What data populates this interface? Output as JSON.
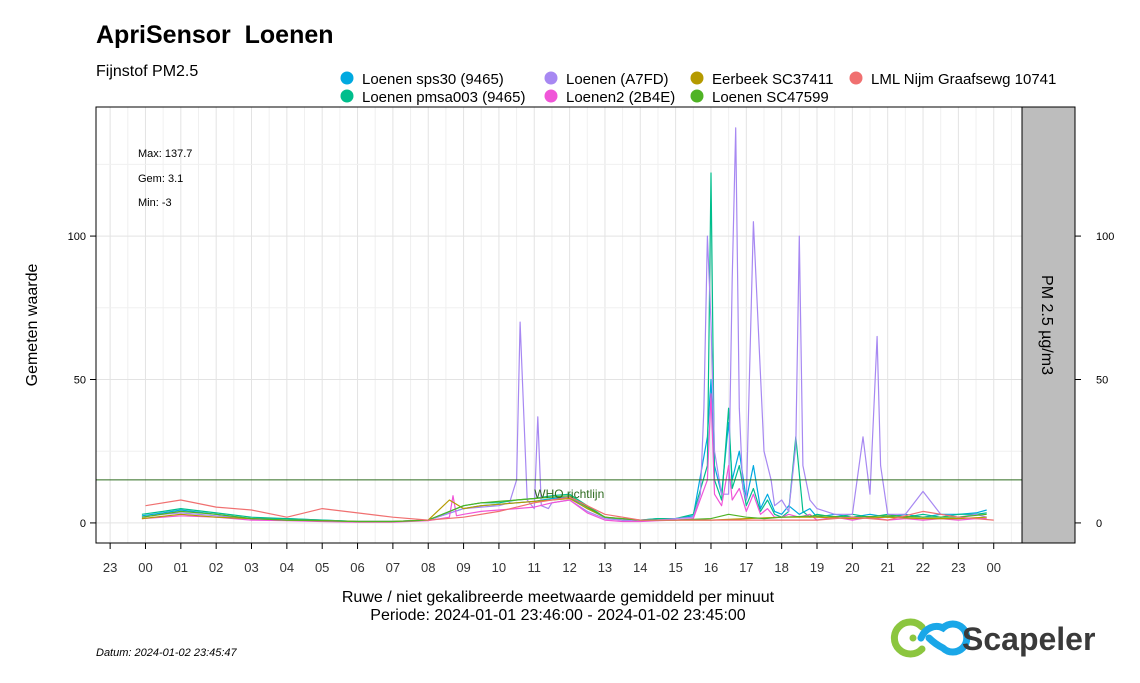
{
  "chart_data": {
    "type": "line",
    "title": "ApriSensor  Loenen",
    "subtitle": "Fijnstof PM2.5",
    "ylabel": "Gemeten waarde",
    "xlabel": "Ruwe / niet gekalibreerde meetwaarde gemiddeld per minuut",
    "period": "Periode: 2024-01-01 23:46:00 - 2024-01-02 23:45:00",
    "strip_label": "PM 2.5 µg/m3",
    "date_label": "Datum: 2024-01-02 23:45:47",
    "stats": {
      "max": "Max: 137.7",
      "gem": "Gem: 3.1",
      "min": "Min: -3"
    },
    "who": {
      "label": "WHO richtlijn",
      "value": 15,
      "color": "#2e6b1f"
    },
    "ylim": [
      -7,
      145
    ],
    "yticks": [
      0,
      50,
      100
    ],
    "xlim": [
      -0.4,
      25.8
    ],
    "xticks": [
      {
        "pos": 0,
        "label": "23"
      },
      {
        "pos": 1,
        "label": "00"
      },
      {
        "pos": 2,
        "label": "01"
      },
      {
        "pos": 3,
        "label": "02"
      },
      {
        "pos": 4,
        "label": "03"
      },
      {
        "pos": 5,
        "label": "04"
      },
      {
        "pos": 6,
        "label": "05"
      },
      {
        "pos": 7,
        "label": "06"
      },
      {
        "pos": 8,
        "label": "07"
      },
      {
        "pos": 9,
        "label": "08"
      },
      {
        "pos": 10,
        "label": "09"
      },
      {
        "pos": 11,
        "label": "10"
      },
      {
        "pos": 12,
        "label": "11"
      },
      {
        "pos": 13,
        "label": "12"
      },
      {
        "pos": 14,
        "label": "13"
      },
      {
        "pos": 15,
        "label": "14"
      },
      {
        "pos": 16,
        "label": "15"
      },
      {
        "pos": 17,
        "label": "16"
      },
      {
        "pos": 18,
        "label": "17"
      },
      {
        "pos": 19,
        "label": "18"
      },
      {
        "pos": 20,
        "label": "19"
      },
      {
        "pos": 21,
        "label": "20"
      },
      {
        "pos": 22,
        "label": "21"
      },
      {
        "pos": 23,
        "label": "22"
      },
      {
        "pos": 24,
        "label": "23"
      },
      {
        "pos": 25,
        "label": "00"
      }
    ],
    "grid": true,
    "legend_position": "top",
    "series": [
      {
        "name": "Loenen sps30 (9465)",
        "color": "#00a9e0",
        "x": [
          0.9,
          1.5,
          2.0,
          3.0,
          4.0,
          5.0,
          6.0,
          7.0,
          8.0,
          9.0,
          9.5,
          10.0,
          10.5,
          11.0,
          11.5,
          12.0,
          12.5,
          13.0,
          13.5,
          14.0,
          14.5,
          15.0,
          15.5,
          16.0,
          16.5,
          16.9,
          17.0,
          17.1,
          17.3,
          17.5,
          17.6,
          17.8,
          18.0,
          18.2,
          18.4,
          18.6,
          18.8,
          19.0,
          19.2,
          19.5,
          19.8,
          20.0,
          20.5,
          21.0,
          21.5,
          22.0,
          22.5,
          23.0,
          23.5,
          24.0,
          24.5,
          24.8
        ],
        "y": [
          2.5,
          3.5,
          4.5,
          3.0,
          1.5,
          1.5,
          1.0,
          0.5,
          0.5,
          1.0,
          3.0,
          5.0,
          6.0,
          6.5,
          7.0,
          7.5,
          8.5,
          9.0,
          5.0,
          2.0,
          1.0,
          1.0,
          1.5,
          1.5,
          2.5,
          30,
          50,
          20,
          10,
          35,
          15,
          25,
          8,
          20,
          5,
          10,
          4,
          3,
          6,
          3,
          5,
          2,
          3,
          2,
          3,
          2,
          3,
          2,
          3,
          3,
          3.5,
          4.5
        ]
      },
      {
        "name": "Loenen pmsa003 (9465)",
        "color": "#00be8c",
        "x": [
          0.9,
          1.5,
          2.0,
          3.0,
          4.0,
          5.0,
          6.0,
          7.0,
          8.0,
          9.0,
          9.5,
          10.0,
          10.5,
          11.0,
          11.5,
          12.0,
          12.5,
          13.0,
          13.5,
          14.0,
          14.5,
          15.0,
          15.5,
          16.0,
          16.5,
          16.9,
          17.0,
          17.1,
          17.3,
          17.5,
          17.6,
          17.8,
          18.0,
          18.2,
          18.4,
          18.6,
          18.8,
          19.0,
          19.2,
          19.4,
          19.6,
          19.8,
          20.0,
          20.5,
          21.0,
          21.5,
          22.0,
          22.5,
          23.0,
          23.5,
          24.0,
          24.5,
          24.8
        ],
        "y": [
          3.0,
          4.0,
          5.0,
          3.5,
          2.0,
          1.5,
          1.0,
          0.5,
          0.5,
          1.0,
          3.5,
          6.0,
          7.0,
          7.0,
          8.0,
          8.5,
          9.5,
          10.0,
          6.0,
          2.0,
          1.0,
          1.0,
          1.5,
          1.5,
          3.0,
          20,
          122,
          15,
          8,
          40,
          12,
          20,
          6,
          12,
          4,
          8,
          3,
          2,
          4,
          30,
          4,
          2,
          3,
          2,
          3,
          2,
          3,
          2,
          3,
          2,
          3,
          3,
          3.5
        ]
      },
      {
        "name": "Loenen (A7FD)",
        "color": "#a788f2",
        "x": [
          0.9,
          1.5,
          2.0,
          3.0,
          4.0,
          5.0,
          6.0,
          7.0,
          8.0,
          9.0,
          9.5,
          10.0,
          10.5,
          11.0,
          11.3,
          11.5,
          11.6,
          11.8,
          12.0,
          12.1,
          12.2,
          12.4,
          12.5,
          13.0,
          13.5,
          14.0,
          14.5,
          15.0,
          15.5,
          16.0,
          16.5,
          16.7,
          16.8,
          16.9,
          17.0,
          17.1,
          17.3,
          17.5,
          17.6,
          17.7,
          17.8,
          17.9,
          18.0,
          18.2,
          18.5,
          18.7,
          18.8,
          19.0,
          19.2,
          19.4,
          19.5,
          19.6,
          19.8,
          20.0,
          20.5,
          21.0,
          21.3,
          21.5,
          21.7,
          21.8,
          22.0,
          22.5,
          23.0,
          23.5,
          24.0,
          24.5,
          24.8
        ],
        "y": [
          2.0,
          3.0,
          3.5,
          2.5,
          1.5,
          1.0,
          0.8,
          0.5,
          0.5,
          1.0,
          3.0,
          5.0,
          5.5,
          6.0,
          7.0,
          15,
          70,
          8,
          5,
          37,
          6,
          5,
          7,
          8,
          4,
          1.5,
          1.0,
          0.8,
          1.0,
          1.5,
          2.0,
          10,
          40,
          100,
          70,
          25,
          10,
          10,
          85,
          137.7,
          40,
          12,
          8,
          105,
          25,
          15,
          6,
          8,
          4,
          27,
          100,
          20,
          8,
          5,
          3,
          3,
          30,
          10,
          65,
          20,
          3,
          3,
          11,
          3,
          2,
          3,
          2
        ]
      },
      {
        "name": "Loenen2 (2B4E)",
        "color": "#f055d8",
        "x": [
          0.9,
          1.5,
          2.0,
          3.0,
          4.0,
          5.0,
          6.0,
          7.0,
          8.0,
          9.0,
          9.6,
          9.7,
          9.8,
          10.0,
          10.5,
          11.0,
          11.5,
          12.0,
          12.5,
          13.0,
          13.5,
          14.0,
          14.5,
          15.0,
          15.5,
          16.0,
          16.5,
          16.9,
          17.0,
          17.1,
          17.3,
          17.5,
          17.6,
          17.8,
          18.0,
          18.2,
          18.4,
          18.6,
          18.8,
          19.0,
          19.2,
          19.5,
          19.8,
          20.0,
          20.5,
          21.0,
          21.5,
          22.0,
          22.5,
          23.0,
          23.5,
          24.0,
          24.5,
          24.8
        ],
        "y": [
          1.5,
          2.0,
          2.5,
          2.0,
          1.0,
          0.8,
          0.5,
          0.3,
          0.3,
          0.8,
          2.0,
          9.5,
          2.5,
          3.0,
          4.0,
          4.5,
          5.0,
          5.5,
          7.0,
          8.0,
          3.5,
          1.0,
          0.5,
          0.5,
          0.8,
          1.0,
          1.5,
          15,
          45,
          10,
          6,
          20,
          8,
          12,
          4,
          10,
          3,
          5,
          2,
          2,
          3,
          2,
          3,
          1,
          2,
          1,
          2,
          1,
          1.5,
          1,
          1.5,
          1,
          1.5,
          1.5
        ]
      },
      {
        "name": "Eerbeek SC37411",
        "color": "#b59a00",
        "x": [
          0.9,
          2.0,
          3.0,
          4.0,
          5.0,
          6.0,
          7.0,
          8.0,
          9.0,
          9.6,
          10.0,
          10.5,
          11.0,
          11.5,
          12.0,
          12.5,
          13.0,
          13.5,
          14.0,
          15.0,
          16.0,
          17.0,
          18.0,
          19.0,
          20.0,
          21.0,
          22.0,
          23.0,
          24.0,
          24.8
        ],
        "y": [
          1.5,
          3.0,
          2.0,
          1.5,
          1.0,
          0.8,
          0.5,
          0.5,
          1.0,
          8.0,
          5.0,
          6.0,
          6.5,
          7.0,
          7.5,
          8.0,
          8.5,
          5.0,
          2.0,
          1.0,
          1.0,
          1.0,
          1.5,
          2.0,
          2.0,
          1.5,
          2.0,
          1.5,
          1.5,
          2.0
        ]
      },
      {
        "name": "Loenen SC47599",
        "color": "#4fb324",
        "x": [
          0.9,
          2.0,
          3.0,
          4.0,
          5.0,
          6.0,
          7.0,
          8.0,
          9.0,
          10.0,
          10.5,
          11.0,
          11.5,
          12.0,
          12.5,
          13.0,
          13.5,
          14.0,
          15.0,
          16.0,
          17.0,
          17.5,
          18.0,
          18.5,
          19.0,
          20.0,
          21.0,
          22.0,
          23.0,
          24.0,
          24.8
        ],
        "y": [
          2.0,
          4.0,
          3.0,
          1.5,
          1.0,
          0.8,
          0.5,
          0.5,
          1.0,
          6.0,
          7.0,
          7.5,
          8.0,
          8.5,
          9.0,
          9.5,
          5.5,
          2.0,
          1.0,
          1.0,
          1.5,
          3.0,
          2.0,
          1.5,
          2.0,
          2.5,
          2.0,
          2.5,
          2.0,
          2.0,
          3.0
        ]
      },
      {
        "name": "LML Nijm Graafsewg 10741",
        "color": "#f07070",
        "x": [
          1,
          2,
          3,
          4,
          5,
          6,
          7,
          8,
          9,
          10,
          11,
          12,
          13,
          14,
          15,
          16,
          17,
          18,
          19,
          20,
          21,
          22,
          23,
          24,
          25
        ],
        "y": [
          6,
          8,
          5.5,
          4.5,
          2,
          5,
          3.5,
          2,
          1,
          2,
          4,
          7,
          9,
          3,
          1,
          1,
          1,
          1,
          1,
          1,
          2,
          1,
          4,
          2,
          1
        ]
      }
    ]
  },
  "branding": {
    "name": "Scapeler"
  }
}
